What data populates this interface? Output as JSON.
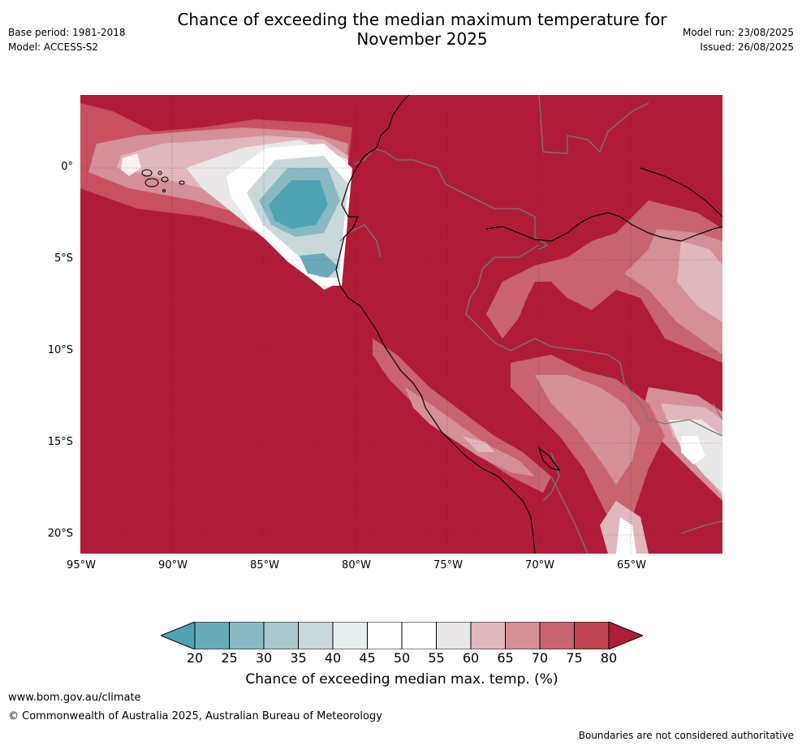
{
  "title_line1": "Chance of exceeding the median maximum temperature for",
  "title_line2": "November 2025",
  "meta_left": {
    "base_period": "Base period: 1981-2018",
    "model": "Model: ACCESS-S2"
  },
  "meta_right": {
    "model_run": "Model run: 23/08/2025",
    "issued": "Issued: 26/08/2025"
  },
  "axes": {
    "lat_labels": [
      "0°",
      "5°S",
      "10°S",
      "15°S",
      "20°S"
    ],
    "lon_labels": [
      "95°W",
      "90°W",
      "85°W",
      "80°W",
      "75°W",
      "70°W",
      "65°W"
    ]
  },
  "legend": {
    "ticks": [
      "20",
      "25",
      "30",
      "35",
      "40",
      "45",
      "50",
      "55",
      "60",
      "65",
      "70",
      "75",
      "80"
    ],
    "colors": [
      "#4fa3b2",
      "#6aabb9",
      "#8ab9c3",
      "#aac9cf",
      "#c9d8da",
      "#e8eef0",
      "#ffffff",
      "#ffffff",
      "#e9e7e7",
      "#e0b7bd",
      "#d48f98",
      "#c8646f",
      "#bc4452",
      "#b01c37"
    ],
    "label": "Chance of exceeding median max. temp. (%)"
  },
  "footer": {
    "website": "www.bom.gov.au/climate",
    "copyright": "© Commonwealth of Australia 2025, Australian Bureau of Meteorology",
    "disclaimer": "Boundaries are not considered authoritative"
  }
}
